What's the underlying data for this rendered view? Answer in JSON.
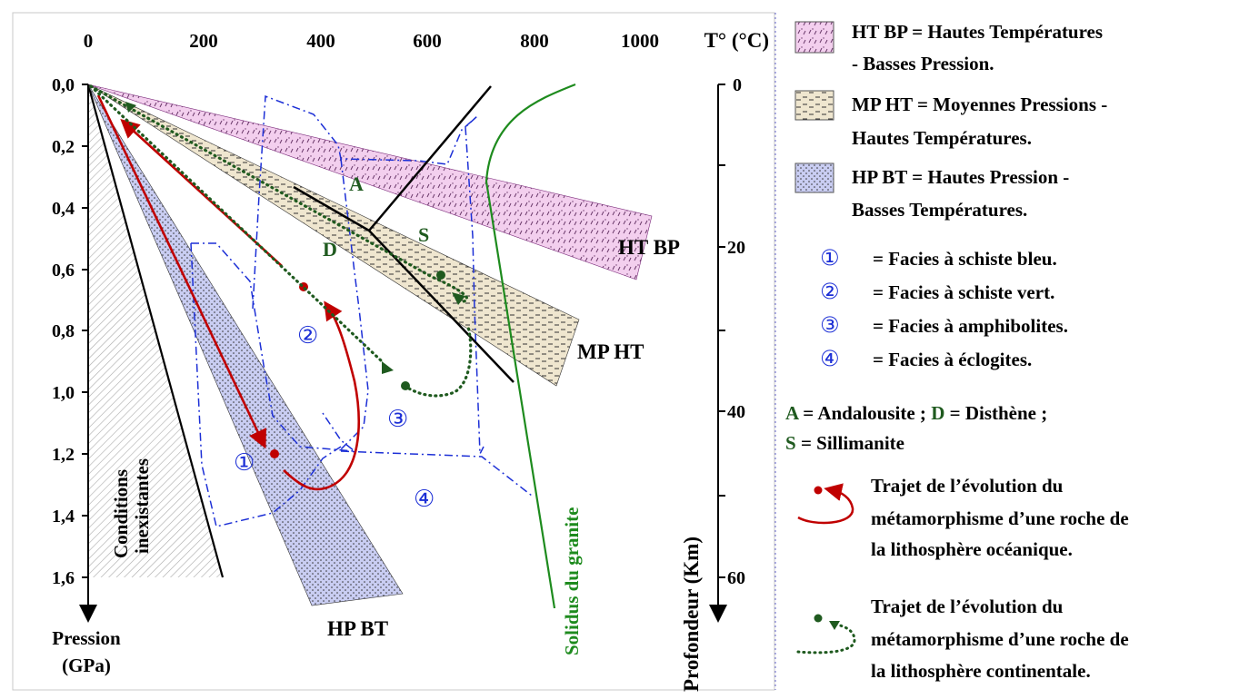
{
  "axes": {
    "temperature_unit": "T° (°C)",
    "temperature_ticks": [
      "0",
      "200",
      "400",
      "600",
      "800",
      "1000"
    ],
    "pressure_ticks": [
      "0,0",
      "0,2",
      "0,4",
      "0,6",
      "0,8",
      "1,0",
      "1,2",
      "1,4",
      "1,6"
    ],
    "pressure_label_line1": "Pression",
    "pressure_label_line2": "(GPa)",
    "depth_ticks": [
      "0",
      "20",
      "40",
      "60"
    ],
    "depth_label": "Profondeur (Km)"
  },
  "regions": {
    "conditions_line1": "Conditions",
    "conditions_line2": "inexistantes",
    "ht_bp": "HT BP",
    "mp_ht": "MP HT",
    "hp_bt": "HP BT",
    "solidus": "Solidus du granite",
    "andalousite_letter": "A",
    "disthene_letter": "D",
    "sillimanite_letter": "S",
    "facies_marks": [
      "①",
      "②",
      "③",
      "④"
    ]
  },
  "legend": {
    "ht_bp_line1": "HT BP = Hautes Températures",
    "ht_bp_line2": "- Basses Pression.",
    "mp_ht_line1": "MP HT = Moyennes Pressions -",
    "mp_ht_line2": "Hautes Températures.",
    "hp_bt_line1": "HP BT =  Hautes Pression -",
    "hp_bt_line2": "Basses Températures.",
    "facies": [
      {
        "mark": "①",
        "text": "=  Facies à schiste bleu."
      },
      {
        "mark": "②",
        "text": "=  Facies à schiste vert."
      },
      {
        "mark": "③",
        "text": "=  Facies à amphibolites."
      },
      {
        "mark": "④",
        "text": "=  Facies à éclogites."
      }
    ],
    "minerals_a": "A",
    "minerals_a_text": " = Andalousite ; ",
    "minerals_d": "D",
    "minerals_d_text": " = Disthène ;",
    "minerals_s": "S",
    "minerals_s_text": " = Sillimanite",
    "oceanic_line1": "Trajet de l’évolution du",
    "oceanic_line2": "métamorphisme d’une roche de",
    "oceanic_line3": "la lithosphère océanique.",
    "continental_line1": "Trajet de l’évolution du",
    "continental_line2": "métamorphisme d’une roche de",
    "continental_line3": "la lithosphère continentale."
  },
  "colors": {
    "red_path": "#c00000",
    "green_path": "#1f5a1f",
    "solidus": "#1e8b1e",
    "facies_blue": "#1c2fd6",
    "ht_bp_fill": "#f3cfee",
    "mp_ht_fill": "#efe6cf",
    "hp_bt_fill": "#c9cdf2"
  }
}
